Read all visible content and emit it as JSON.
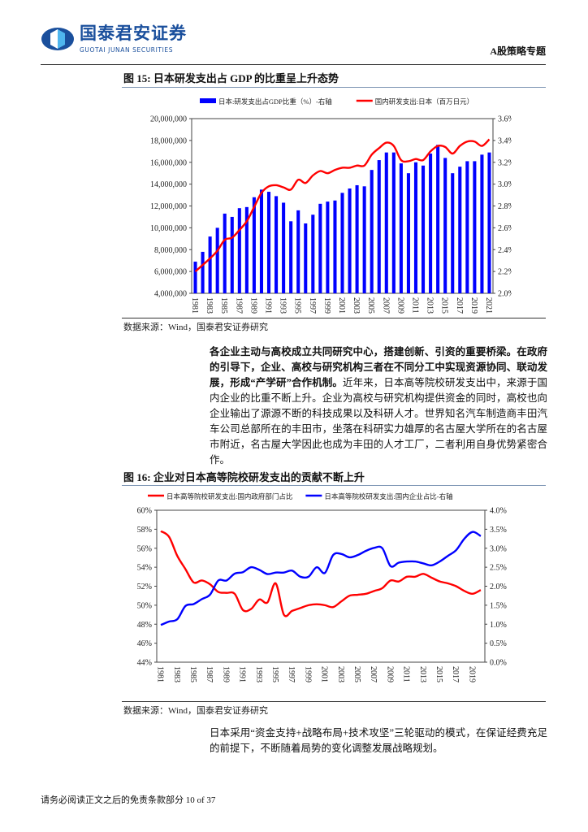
{
  "header": {
    "logo_cn": "国泰君安证券",
    "logo_en": "GUOTAI JUNAN SECURITIES",
    "section_tag": "A股策略专题",
    "brand_color": "#1a4f9c"
  },
  "figure15": {
    "title": "图 15:  日本研发支出占 GDP 的比重呈上升态势",
    "source": "数据来源：Wind，国泰君安证券研究"
  },
  "paragraph1": {
    "bold": "各企业主动与高校成立共同研究中心，搭建创新、引资的重要桥梁。在政府的引导下，企业、高校与研究机构三者在不同分工中实现资源协同、联动发展，形成“产学研”合作机制。",
    "normal": "近年来，日本高等院校研发支出中，来源于国内企业的比重不断上升。企业为高校与研究机构提供资金的同时，高校也向企业输出了源源不断的科技成果以及科研人才。世界知名汽车制造商丰田汽车公司总部所在的丰田市，坐落在科研实力雄厚的名古屋大学所在的名古屋市附近，名古屋大学因此也成为丰田的人才工厂，二者利用自身优势紧密合作。"
  },
  "figure16": {
    "title": "图 16:  企业对日本高等院校研发支出的贡献不断上升",
    "source": "数据来源：Wind，国泰君安证券研究"
  },
  "paragraph2": {
    "text": "日本采用“资金支持+战略布局+技术攻坚”三轮驱动的模式，在保证经费充足的前提下，不断随着局势的变化调整发展战略规划。"
  },
  "footer": {
    "disclaimer": "请务必阅读正文之后的免责条款部分",
    "page": "10 of 37"
  },
  "chart_data": [
    {
      "type": "bar+line",
      "categories": [
        1981,
        1982,
        1983,
        1984,
        1985,
        1986,
        1987,
        1988,
        1989,
        1990,
        1991,
        1992,
        1993,
        1994,
        1995,
        1996,
        1997,
        1998,
        1999,
        2000,
        2001,
        2002,
        2003,
        2004,
        2005,
        2006,
        2007,
        2008,
        2009,
        2010,
        2011,
        2012,
        2013,
        2014,
        2015,
        2016,
        2017,
        2018,
        2019,
        2020,
        2021
      ],
      "x_tick_labels": [
        "1981",
        "1983",
        "1985",
        "1987",
        "1989",
        "1991",
        "1993",
        "1995",
        "1997",
        "1999",
        "2001",
        "2003",
        "2005",
        "2007",
        "2009",
        "2011",
        "2013",
        "2015",
        "2017",
        "2019",
        "2021"
      ],
      "left_ticks": [
        "4,000,000",
        "6,000,000",
        "8,000,000",
        "10,000,000",
        "12,000,000",
        "14,000,000",
        "16,000,000",
        "18,000,000",
        "20,000,000"
      ],
      "right_ticks": [
        "2.0%",
        "2.2%",
        "2.4%",
        "2.6%",
        "2.8%",
        "3.0%",
        "3.2%",
        "3.4%",
        "3.6%"
      ],
      "ylim_left": [
        4000000,
        20000000
      ],
      "ylim_right": [
        2.0,
        3.6
      ],
      "legend_position": "top",
      "grid": false,
      "series": [
        {
          "name": "日本:研发支出占GDP比重（%）-右轴",
          "kind": "bar",
          "axis": "right",
          "color": "#0000ff",
          "values": [
            2.29,
            2.38,
            2.52,
            2.6,
            2.73,
            2.7,
            2.78,
            2.79,
            2.88,
            2.95,
            2.93,
            2.89,
            2.83,
            2.66,
            2.76,
            2.64,
            2.72,
            2.82,
            2.84,
            2.85,
            2.92,
            2.96,
            2.99,
            2.98,
            3.13,
            3.22,
            3.29,
            3.29,
            3.19,
            3.1,
            3.2,
            3.17,
            3.28,
            3.36,
            3.24,
            3.1,
            3.16,
            3.21,
            3.21,
            3.27,
            3.29
          ]
        },
        {
          "name": "国内研发支出:日本（百万日元）",
          "kind": "line",
          "axis": "left",
          "color": "#ff0000",
          "values": [
            6000000,
            6600000,
            7200000,
            7900000,
            8900000,
            9100000,
            9800000,
            10600000,
            11900000,
            13200000,
            13800000,
            13900000,
            13700000,
            13500000,
            14400000,
            14100000,
            14800000,
            15200000,
            15000000,
            15300000,
            15500000,
            15500000,
            15700000,
            15700000,
            16700000,
            17300000,
            17800000,
            17500000,
            16200000,
            16100000,
            16300000,
            16200000,
            17000000,
            17500000,
            17400000,
            16800000,
            17500000,
            17900000,
            17900000,
            17500000,
            18100000
          ]
        }
      ]
    },
    {
      "type": "line",
      "categories": [
        1981,
        1982,
        1983,
        1984,
        1985,
        1986,
        1987,
        1988,
        1989,
        1990,
        1991,
        1992,
        1993,
        1994,
        1995,
        1996,
        1997,
        1998,
        1999,
        2000,
        2001,
        2002,
        2003,
        2004,
        2005,
        2006,
        2007,
        2008,
        2009,
        2010,
        2011,
        2012,
        2013,
        2014,
        2015,
        2016,
        2017,
        2018,
        2019,
        2020
      ],
      "x_tick_labels": [
        "1981",
        "1983",
        "1985",
        "1987",
        "1989",
        "1991",
        "1993",
        "1995",
        "1997",
        "1999",
        "2001",
        "2003",
        "2005",
        "2007",
        "2009",
        "2011",
        "2013",
        "2015",
        "2017",
        "2019"
      ],
      "left_ticks": [
        "44%",
        "46%",
        "48%",
        "50%",
        "52%",
        "54%",
        "56%",
        "58%",
        "60%"
      ],
      "right_ticks": [
        "0.0%",
        "0.5%",
        "1.0%",
        "1.5%",
        "2.0%",
        "2.5%",
        "3.0%",
        "3.5%",
        "4.0%"
      ],
      "ylim_left": [
        44,
        60
      ],
      "ylim_right": [
        0.0,
        4.0
      ],
      "legend_position": "top",
      "grid": false,
      "series": [
        {
          "name": "日本高等院校研发支出:国内政府部门占比",
          "axis": "left",
          "color": "#ff0000",
          "values": [
            57.8,
            57.2,
            55.2,
            53.8,
            52.4,
            52.6,
            52.2,
            51.4,
            51.3,
            51.2,
            49.5,
            49.6,
            50.6,
            50.3,
            52.3,
            49.0,
            49.4,
            49.7,
            50.0,
            50.1,
            50.0,
            49.8,
            50.4,
            51.0,
            51.1,
            51.2,
            51.5,
            51.8,
            52.6,
            52.5,
            53.0,
            53.0,
            53.3,
            52.9,
            52.5,
            52.3,
            52.0,
            51.5,
            51.2,
            51.6
          ]
        },
        {
          "name": "日本高等院校研发支出:国内企业占比-右轴",
          "axis": "right",
          "color": "#0000ff",
          "values": [
            0.98,
            1.07,
            1.13,
            1.48,
            1.53,
            1.66,
            1.78,
            2.15,
            2.15,
            2.33,
            2.37,
            2.5,
            2.43,
            2.32,
            2.36,
            2.36,
            2.41,
            2.25,
            2.25,
            2.5,
            2.35,
            2.82,
            2.85,
            2.76,
            2.82,
            2.93,
            3.01,
            3.0,
            2.53,
            2.62,
            2.65,
            2.65,
            2.6,
            2.55,
            2.65,
            2.8,
            2.95,
            3.25,
            3.43,
            3.32
          ]
        }
      ]
    }
  ]
}
